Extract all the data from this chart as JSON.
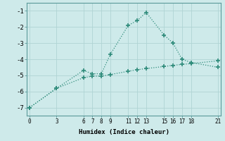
{
  "line1_x": [
    0,
    3,
    6,
    7,
    8,
    9,
    11,
    12,
    13,
    15,
    16,
    17,
    18,
    21
  ],
  "line1_y": [
    -7.0,
    -5.8,
    -4.7,
    -4.9,
    -4.9,
    -3.7,
    -1.9,
    -1.6,
    -1.1,
    -2.5,
    -3.0,
    -4.0,
    -4.2,
    -4.5
  ],
  "line2_x": [
    0,
    3,
    6,
    7,
    8,
    9,
    11,
    12,
    13,
    15,
    16,
    17,
    18,
    21
  ],
  "line2_y": [
    -7.0,
    -5.8,
    -5.15,
    -5.05,
    -5.05,
    -4.95,
    -4.75,
    -4.65,
    -4.58,
    -4.45,
    -4.38,
    -4.32,
    -4.27,
    -4.1
  ],
  "color": "#2e8b7a",
  "xlabel": "Humidex (Indice chaleur)",
  "xticks": [
    0,
    3,
    6,
    7,
    8,
    9,
    11,
    12,
    13,
    15,
    16,
    17,
    18,
    21
  ],
  "yticks": [
    -7,
    -6,
    -5,
    -4,
    -3,
    -2,
    -1
  ],
  "xlim": [
    -0.3,
    21.3
  ],
  "ylim": [
    -7.5,
    -0.5
  ],
  "bg_color": "#ceeaea",
  "grid_color": "#b0d4d4"
}
